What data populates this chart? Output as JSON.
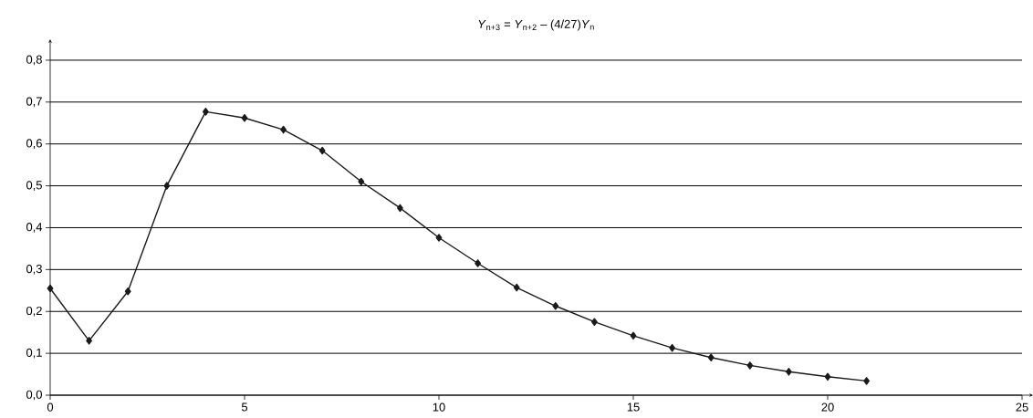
{
  "chart_data": {
    "type": "line",
    "title": "*Y*$_{n+3}$ = *Y*$_{n+2}$ – (4/27)*Y*$_{n}$",
    "x": [
      0,
      1,
      2,
      3,
      4,
      5,
      6,
      7,
      8,
      9,
      10,
      11,
      12,
      13,
      14,
      15,
      16,
      17,
      18,
      19,
      20,
      21
    ],
    "series": [
      {
        "color": "#1a1a1a",
        "values": [
          0.255,
          0.13,
          0.248,
          0.5,
          0.677,
          0.662,
          0.634,
          0.584,
          0.51,
          0.447,
          0.376,
          0.315,
          0.257,
          0.213,
          0.175,
          0.142,
          0.113,
          0.09,
          0.071,
          0.056,
          0.044,
          0.034
        ]
      }
    ],
    "xlim": [
      0,
      25
    ],
    "ylim": [
      0,
      0.85
    ],
    "xticks": [
      0,
      5,
      10,
      15,
      20,
      25
    ],
    "yticks": [
      {
        "value": 0,
        "label": "0,0"
      },
      {
        "value": 0.1,
        "label": "0,1"
      },
      {
        "value": 0.2,
        "label": "0,2"
      },
      {
        "value": 0.3,
        "label": "0,3"
      },
      {
        "value": 0.4,
        "label": "0,4"
      },
      {
        "value": 0.5,
        "label": "0,5"
      },
      {
        "value": 0.6,
        "label": "0,6"
      },
      {
        "value": 0.7,
        "label": "0,7"
      },
      {
        "value": 0.8,
        "label": "0,8"
      }
    ],
    "grid": "y",
    "marker": "diamond",
    "line_style": "solid"
  }
}
